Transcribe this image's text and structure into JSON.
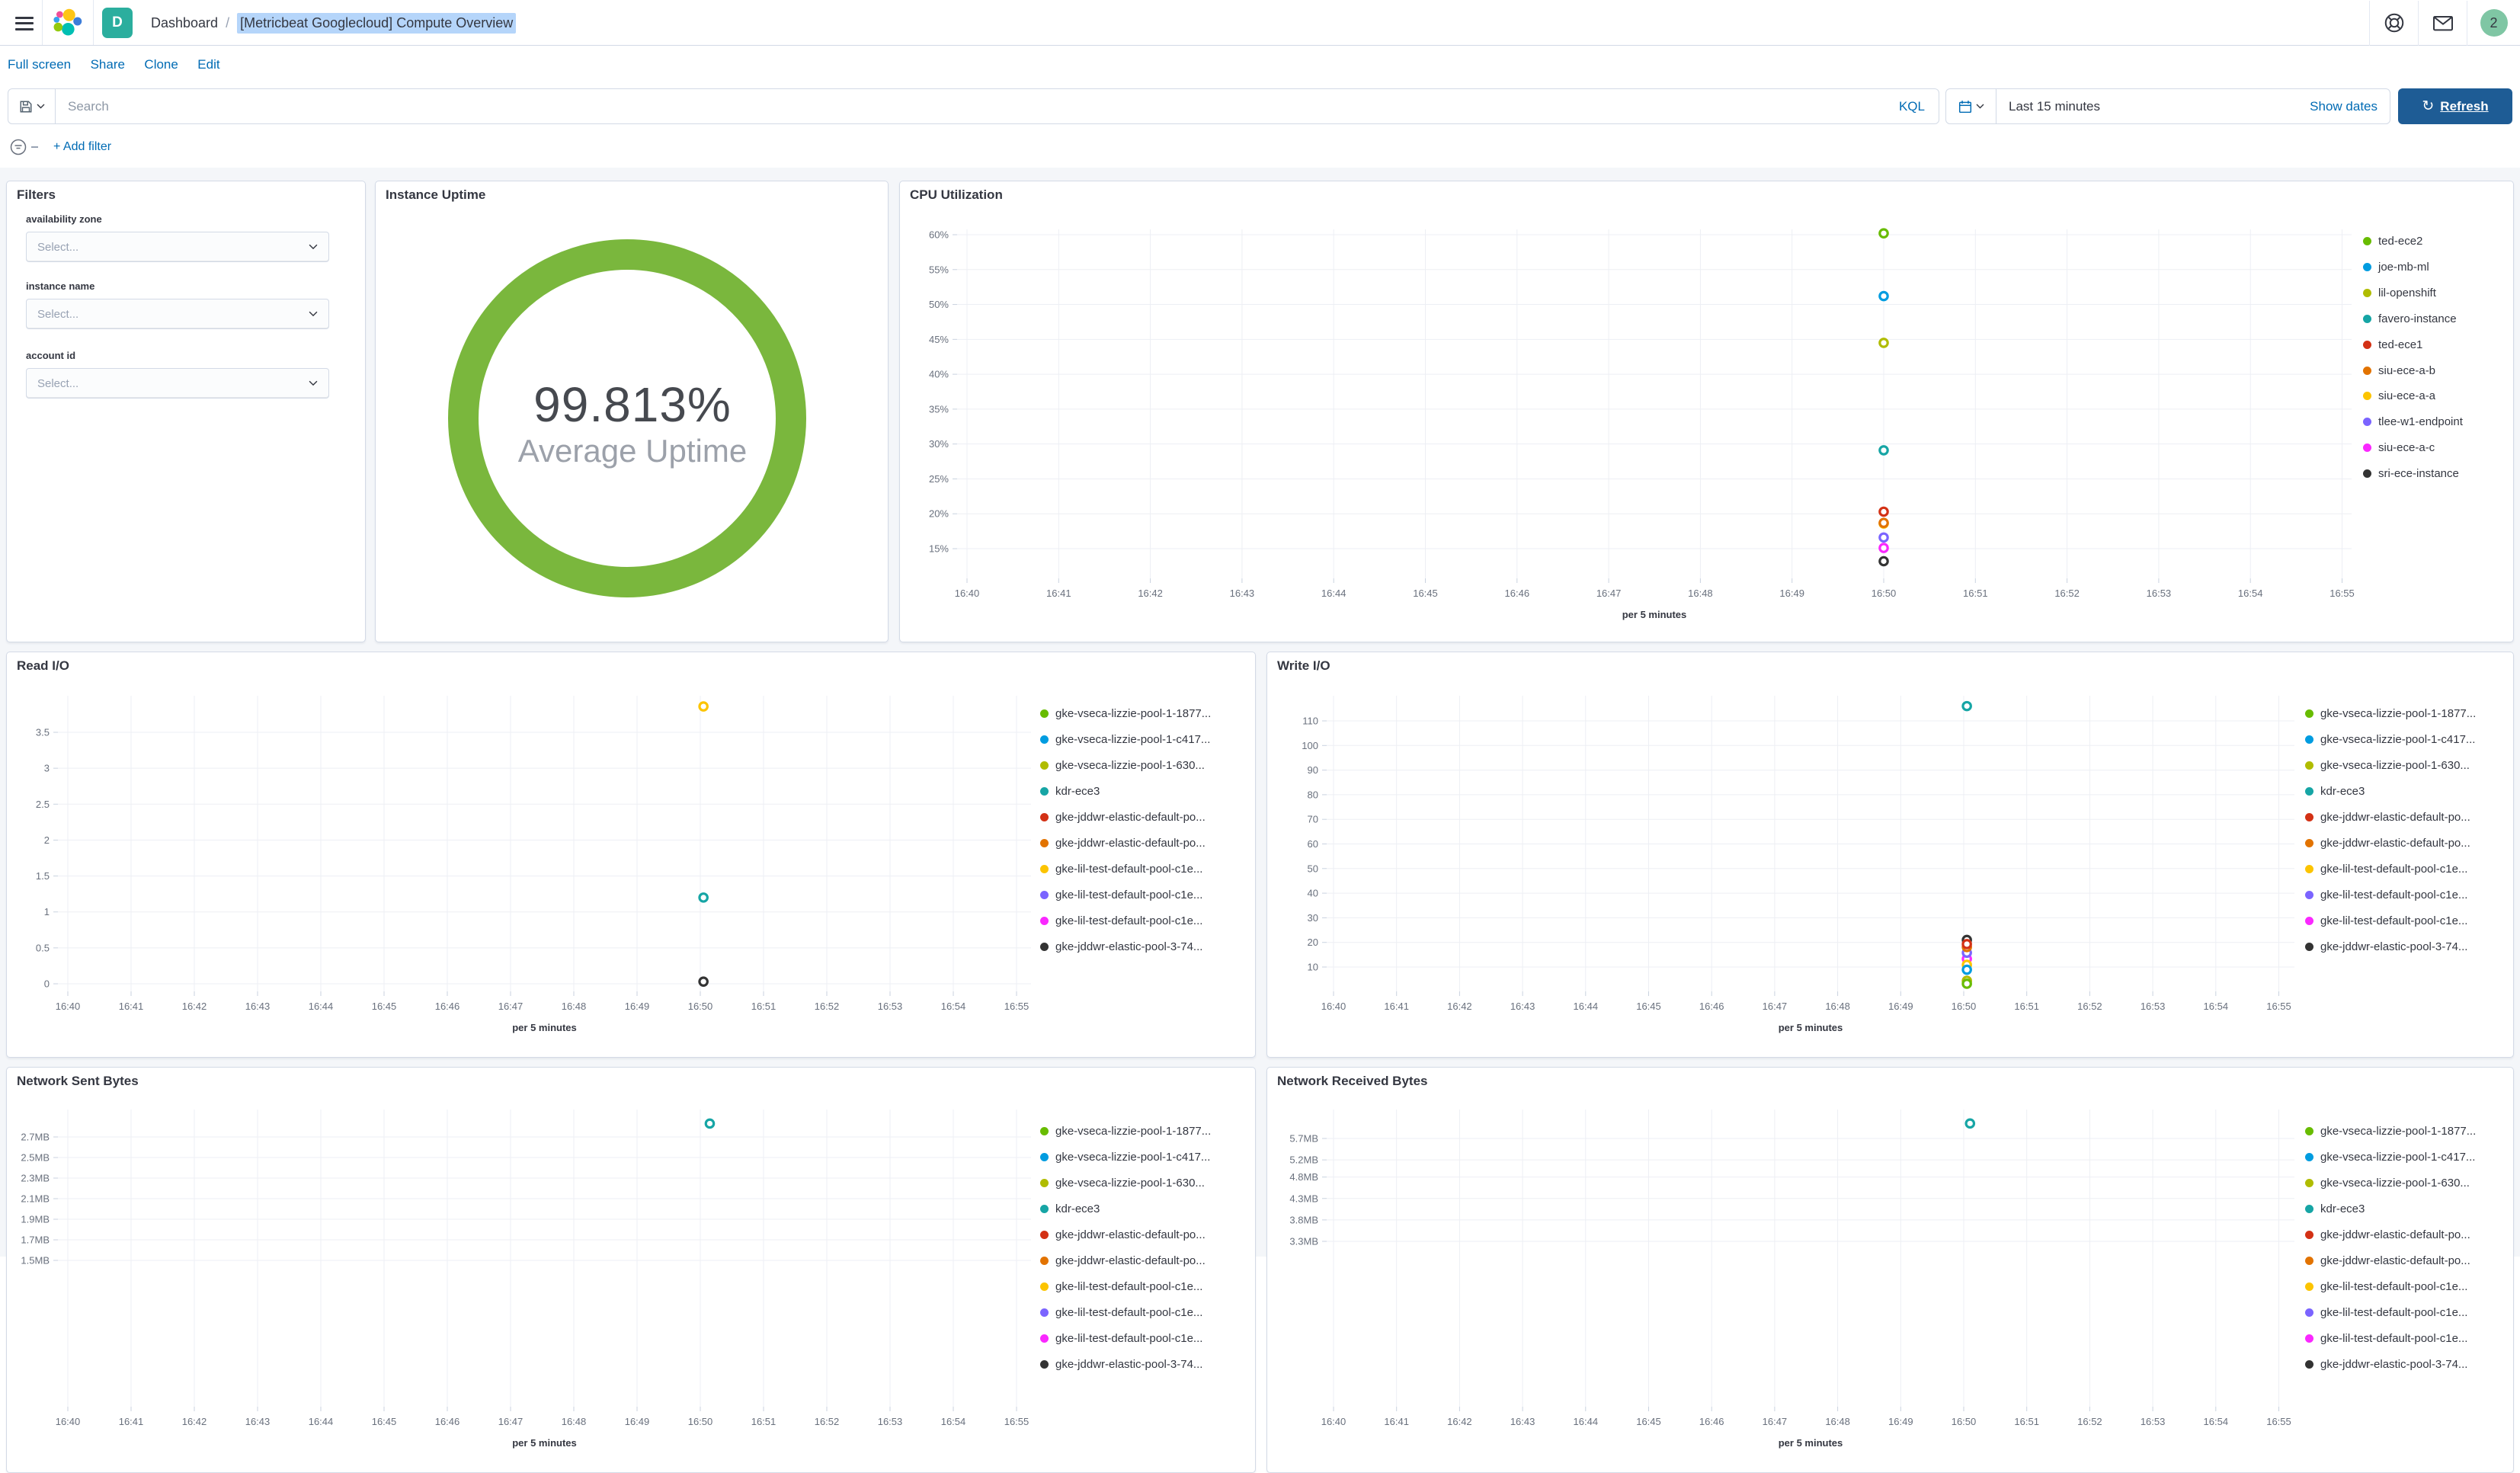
{
  "chrome": {
    "breadcrumb_root": "Dashboard",
    "breadcrumb_separator": "/",
    "page_title": "[Metricbeat Googlecloud] Compute Overview",
    "space_initial": "D",
    "user_badge": "2"
  },
  "toolbar": {
    "links": [
      "Full screen",
      "Share",
      "Clone",
      "Edit"
    ]
  },
  "query_bar": {
    "search_placeholder": "Search",
    "language_label": "KQL",
    "time_range": "Last 15 minutes",
    "show_dates_label": "Show dates",
    "refresh_label": "Refresh",
    "add_filter_label": "+ Add filter"
  },
  "panels": {
    "filters": {
      "title": "Filters",
      "fields": [
        {
          "label": "availability zone",
          "placeholder": "Select..."
        },
        {
          "label": "instance name",
          "placeholder": "Select..."
        },
        {
          "label": "account id",
          "placeholder": "Select..."
        }
      ]
    },
    "uptime": {
      "title": "Instance Uptime",
      "value": "99.813%",
      "label": "Average Uptime",
      "ring_color": "#7AB73D"
    }
  },
  "chart_data": [
    {
      "id": "cpu",
      "type": "scatter",
      "title": "CPU Utilization",
      "xlabel": "per 5 minutes",
      "x_minutes_from": "16:40",
      "x_tick_labels": [
        "16:40",
        "16:41",
        "16:42",
        "16:43",
        "16:44",
        "16:45",
        "16:46",
        "16:47",
        "16:48",
        "16:49",
        "16:50",
        "16:51",
        "16:52",
        "16:53",
        "16:54",
        "16:55"
      ],
      "y_ticks": [
        {
          "v": 60,
          "label": "60%"
        },
        {
          "v": 55,
          "label": "55%"
        },
        {
          "v": 50,
          "label": "50%"
        },
        {
          "v": 45,
          "label": "45%"
        },
        {
          "v": 40,
          "label": "40%"
        },
        {
          "v": 35,
          "label": "35%"
        },
        {
          "v": 30,
          "label": "30%"
        },
        {
          "v": 25,
          "label": "25%"
        },
        {
          "v": 20,
          "label": "20%"
        },
        {
          "v": 15,
          "label": "15%"
        }
      ],
      "ylim": [
        10.7,
        60.8
      ],
      "grid": true,
      "legend_position": "right",
      "series": [
        {
          "name": "ted-ece2",
          "color": "#68BC00",
          "points": [
            [
              10,
              60.2
            ]
          ]
        },
        {
          "name": "joe-mb-ml",
          "color": "#009CE0",
          "points": [
            [
              10,
              51.2
            ]
          ]
        },
        {
          "name": "lil-openshift",
          "color": "#B0BC00",
          "points": [
            [
              10,
              44.5
            ]
          ]
        },
        {
          "name": "favero-instance",
          "color": "#16A5A5",
          "points": [
            [
              10,
              29.1
            ]
          ]
        },
        {
          "name": "ted-ece1",
          "color": "#D33115",
          "points": [
            [
              10,
              20.3
            ]
          ]
        },
        {
          "name": "siu-ece-a-b",
          "color": "#E27300",
          "points": [
            [
              10,
              18.7
            ]
          ]
        },
        {
          "name": "siu-ece-a-a",
          "color": "#FCC400",
          "points": [
            [
              10,
              18.6
            ]
          ]
        },
        {
          "name": "tlee-w1-endpoint",
          "color": "#7B64FF",
          "points": [
            [
              10,
              16.6
            ]
          ]
        },
        {
          "name": "siu-ece-a-c",
          "color": "#FA28FF",
          "points": [
            [
              10,
              15.1
            ]
          ]
        },
        {
          "name": "sri-ece-instance",
          "color": "#333333",
          "points": [
            [
              10,
              13.2
            ]
          ]
        }
      ]
    },
    {
      "id": "read_io",
      "type": "scatter",
      "title": "Read I/O",
      "xlabel": "per 5 minutes",
      "x_minutes_from": "16:40",
      "x_tick_labels": [
        "16:40",
        "16:41",
        "16:42",
        "16:43",
        "16:44",
        "16:45",
        "16:46",
        "16:47",
        "16:48",
        "16:49",
        "16:50",
        "16:51",
        "16:52",
        "16:53",
        "16:54",
        "16:55"
      ],
      "y_ticks": [
        {
          "v": 3.5,
          "label": "3.5"
        },
        {
          "v": 3,
          "label": "3"
        },
        {
          "v": 2.5,
          "label": "2.5"
        },
        {
          "v": 2,
          "label": "2"
        },
        {
          "v": 1.5,
          "label": "1.5"
        },
        {
          "v": 1,
          "label": "1"
        },
        {
          "v": 0.5,
          "label": "0.5"
        },
        {
          "v": 0,
          "label": "0"
        }
      ],
      "ylim": [
        -0.1,
        4.0
      ],
      "grid": true,
      "legend_position": "right",
      "series": [
        {
          "name": "gke-vseca-lizzie-pool-1-1877...",
          "color": "#68BC00",
          "points": []
        },
        {
          "name": "gke-vseca-lizzie-pool-1-c417...",
          "color": "#009CE0",
          "points": []
        },
        {
          "name": "gke-vseca-lizzie-pool-1-630...",
          "color": "#B0BC00",
          "points": []
        },
        {
          "name": "kdr-ece3",
          "color": "#16A5A5",
          "points": [
            [
              10.05,
              1.2
            ]
          ]
        },
        {
          "name": "gke-jddwr-elastic-default-po...",
          "color": "#D33115",
          "points": []
        },
        {
          "name": "gke-jddwr-elastic-default-po...",
          "color": "#E27300",
          "points": []
        },
        {
          "name": "gke-lil-test-default-pool-c1e...",
          "color": "#FCC400",
          "points": [
            [
              10.05,
              3.86
            ]
          ]
        },
        {
          "name": "gke-lil-test-default-pool-c1e...",
          "color": "#7B64FF",
          "points": []
        },
        {
          "name": "gke-lil-test-default-pool-c1e...",
          "color": "#FA28FF",
          "points": []
        },
        {
          "name": "gke-jddwr-elastic-pool-3-74...",
          "color": "#333333",
          "points": [
            [
              10.05,
              0.03
            ]
          ]
        }
      ]
    },
    {
      "id": "write_io",
      "type": "scatter",
      "title": "Write I/O",
      "xlabel": "per 5 minutes",
      "x_minutes_from": "16:40",
      "x_tick_labels": [
        "16:40",
        "16:41",
        "16:42",
        "16:43",
        "16:44",
        "16:45",
        "16:46",
        "16:47",
        "16:48",
        "16:49",
        "16:50",
        "16:51",
        "16:52",
        "16:53",
        "16:54",
        "16:55"
      ],
      "y_ticks": [
        {
          "v": 110,
          "label": "110"
        },
        {
          "v": 100,
          "label": "100"
        },
        {
          "v": 90,
          "label": "90"
        },
        {
          "v": 80,
          "label": "80"
        },
        {
          "v": 70,
          "label": "70"
        },
        {
          "v": 60,
          "label": "60"
        },
        {
          "v": 50,
          "label": "50"
        },
        {
          "v": 40,
          "label": "40"
        },
        {
          "v": 30,
          "label": "30"
        },
        {
          "v": 20,
          "label": "20"
        },
        {
          "v": 10,
          "label": "10"
        }
      ],
      "ylim": [
        0,
        120.3
      ],
      "grid": true,
      "legend_position": "right",
      "series": [
        {
          "name": "gke-vseca-lizzie-pool-1-1877...",
          "color": "#68BC00",
          "points": [
            [
              10.05,
              3.2
            ]
          ]
        },
        {
          "name": "gke-vseca-lizzie-pool-1-c417...",
          "color": "#009CE0",
          "points": [
            [
              10.05,
              8.9
            ]
          ]
        },
        {
          "name": "gke-vseca-lizzie-pool-1-630...",
          "color": "#B0BC00",
          "points": [
            [
              10.05,
              4.4
            ]
          ]
        },
        {
          "name": "kdr-ece3",
          "color": "#16A5A5",
          "points": [
            [
              10.05,
              116
            ]
          ]
        },
        {
          "name": "gke-jddwr-elastic-default-po...",
          "color": "#D33115",
          "points": [
            [
              10.05,
              19.3
            ]
          ]
        },
        {
          "name": "gke-jddwr-elastic-default-po...",
          "color": "#E27300",
          "points": [
            [
              10.05,
              18.1
            ]
          ]
        },
        {
          "name": "gke-lil-test-default-pool-c1e...",
          "color": "#FCC400",
          "points": [
            [
              10.05,
              10.9
            ]
          ]
        },
        {
          "name": "gke-lil-test-default-pool-c1e...",
          "color": "#7B64FF",
          "points": [
            [
              10.05,
              15.8
            ]
          ]
        },
        {
          "name": "gke-lil-test-default-pool-c1e...",
          "color": "#FA28FF",
          "points": [
            [
              10.05,
              13.3
            ]
          ]
        },
        {
          "name": "gke-jddwr-elastic-pool-3-74...",
          "color": "#333333",
          "points": [
            [
              10.05,
              21
            ]
          ]
        }
      ]
    },
    {
      "id": "net_sent",
      "type": "scatter",
      "title": "Network Sent Bytes",
      "xlabel": "per 5 minutes",
      "x_minutes_from": "16:40",
      "x_tick_labels": [
        "16:40",
        "16:41",
        "16:42",
        "16:43",
        "16:44",
        "16:45",
        "16:46",
        "16:47",
        "16:48",
        "16:49",
        "16:50",
        "16:51",
        "16:52",
        "16:53",
        "16:54",
        "16:55"
      ],
      "y_ticks": [
        {
          "v": 2.7,
          "label": "2.7MB"
        },
        {
          "v": 2.5,
          "label": "2.5MB"
        },
        {
          "v": 2.3,
          "label": "2.3MB"
        },
        {
          "v": 2.1,
          "label": "2.1MB"
        },
        {
          "v": 1.9,
          "label": "1.9MB"
        },
        {
          "v": 1.7,
          "label": "1.7MB"
        },
        {
          "v": 1.5,
          "label": "1.5MB"
        }
      ],
      "ylim": [
        1.45,
        2.97
      ],
      "grid": true,
      "legend_position": "right",
      "series": [
        {
          "name": "gke-vseca-lizzie-pool-1-1877...",
          "color": "#68BC00",
          "points": []
        },
        {
          "name": "gke-vseca-lizzie-pool-1-c417...",
          "color": "#009CE0",
          "points": []
        },
        {
          "name": "gke-vseca-lizzie-pool-1-630...",
          "color": "#B0BC00",
          "points": []
        },
        {
          "name": "kdr-ece3",
          "color": "#16A5A5",
          "points": [
            [
              10.15,
              2.83
            ]
          ]
        },
        {
          "name": "gke-jddwr-elastic-default-po...",
          "color": "#D33115",
          "points": []
        },
        {
          "name": "gke-jddwr-elastic-default-po...",
          "color": "#E27300",
          "points": []
        },
        {
          "name": "gke-lil-test-default-pool-c1e...",
          "color": "#FCC400",
          "points": []
        },
        {
          "name": "gke-lil-test-default-pool-c1e...",
          "color": "#7B64FF",
          "points": []
        },
        {
          "name": "gke-lil-test-default-pool-c1e...",
          "color": "#FA28FF",
          "points": []
        },
        {
          "name": "gke-jddwr-elastic-pool-3-74...",
          "color": "#333333",
          "points": []
        }
      ]
    },
    {
      "id": "net_received",
      "type": "scatter",
      "title": "Network Received Bytes",
      "xlabel": "per 5 minutes",
      "x_minutes_from": "16:40",
      "x_tick_labels": [
        "16:40",
        "16:41",
        "16:42",
        "16:43",
        "16:44",
        "16:45",
        "16:46",
        "16:47",
        "16:48",
        "16:49",
        "16:50",
        "16:51",
        "16:52",
        "16:53",
        "16:54",
        "16:55"
      ],
      "y_ticks": [
        {
          "v": 5.7,
          "label": "5.7MB"
        },
        {
          "v": 5.2,
          "label": "5.2MB"
        },
        {
          "v": 4.8,
          "label": "4.8MB"
        },
        {
          "v": 4.3,
          "label": "4.3MB"
        },
        {
          "v": 3.8,
          "label": "3.8MB"
        },
        {
          "v": 3.3,
          "label": "3.3MB"
        }
      ],
      "ylim": [
        2.73,
        6.38
      ],
      "grid": true,
      "legend_position": "right",
      "series": [
        {
          "name": "gke-vseca-lizzie-pool-1-1877...",
          "color": "#68BC00",
          "points": []
        },
        {
          "name": "gke-vseca-lizzie-pool-1-c417...",
          "color": "#009CE0",
          "points": []
        },
        {
          "name": "gke-vseca-lizzie-pool-1-630...",
          "color": "#B0BC00",
          "points": []
        },
        {
          "name": "kdr-ece3",
          "color": "#16A5A5",
          "points": [
            [
              10.1,
              6.05
            ]
          ]
        },
        {
          "name": "gke-jddwr-elastic-default-po...",
          "color": "#D33115",
          "points": []
        },
        {
          "name": "gke-jddwr-elastic-default-po...",
          "color": "#E27300",
          "points": []
        },
        {
          "name": "gke-lil-test-default-pool-c1e...",
          "color": "#FCC400",
          "points": []
        },
        {
          "name": "gke-lil-test-default-pool-c1e...",
          "color": "#7B64FF",
          "points": []
        },
        {
          "name": "gke-lil-test-default-pool-c1e...",
          "color": "#FA28FF",
          "points": []
        },
        {
          "name": "gke-jddwr-elastic-pool-3-74...",
          "color": "#333333",
          "points": []
        }
      ]
    }
  ]
}
